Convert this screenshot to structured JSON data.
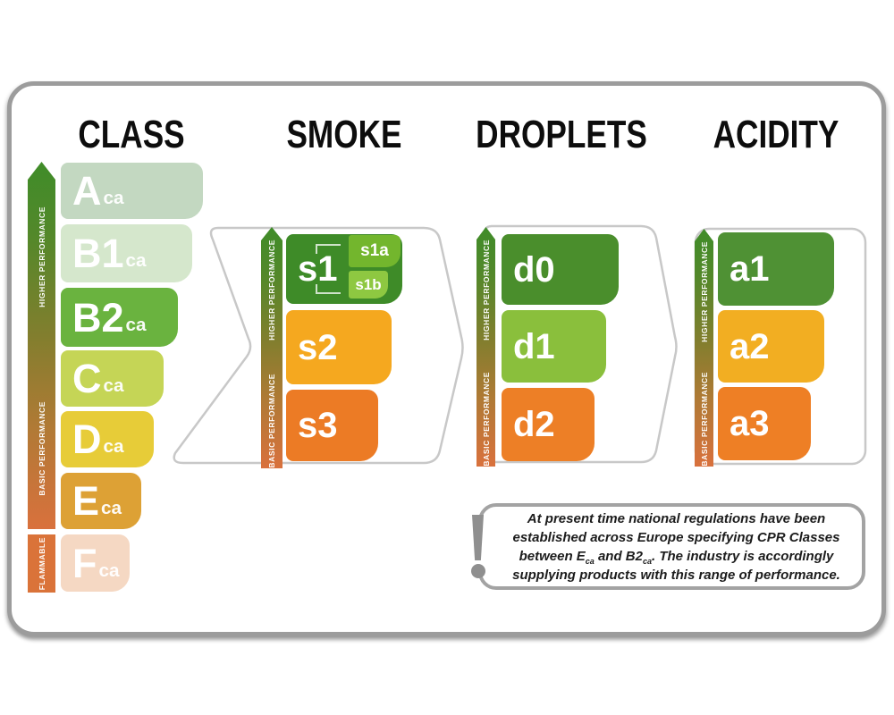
{
  "columns": {
    "class": {
      "title": "CLASS",
      "scale_labels": {
        "higher": "HIGHER PERFORMANCE",
        "basic": "BASIC PERFORMANCE",
        "flammable": "FLAMMABLE"
      },
      "bars": [
        {
          "label": "A",
          "subscript": "ca",
          "color": "#c3d8c1"
        },
        {
          "label": "B1",
          "subscript": "ca",
          "color": "#d5e7cc"
        },
        {
          "label": "B2",
          "subscript": "ca",
          "color": "#6ab33f"
        },
        {
          "label": "C",
          "subscript": "ca",
          "color": "#c5d556"
        },
        {
          "label": "D",
          "subscript": "ca",
          "color": "#e7cc38"
        },
        {
          "label": "E",
          "subscript": "ca",
          "color": "#dda135"
        },
        {
          "label": "F",
          "subscript": "ca",
          "color": "#f5d8c3"
        }
      ]
    },
    "smoke": {
      "title": "SMOKE",
      "scale_labels": {
        "higher": "HIGHER PERFORMANCE",
        "basic": "BASIC PERFORMANCE"
      },
      "bars": [
        {
          "label": "s1",
          "color": "#3e8b28",
          "badges": [
            {
              "label": "s1a",
              "color": "#73b62d"
            },
            {
              "label": "s1b",
              "color": "#8ec841"
            }
          ]
        },
        {
          "label": "s2",
          "color": "#f5a81f"
        },
        {
          "label": "s3",
          "color": "#ec7b25"
        }
      ]
    },
    "droplets": {
      "title": "DROPLETS",
      "scale_labels": {
        "higher": "HIGHER PERFORMANCE",
        "basic": "BASIC PERFORMANCE"
      },
      "bars": [
        {
          "label": "d0",
          "color": "#4a8e2c"
        },
        {
          "label": "d1",
          "color": "#8abf3c"
        },
        {
          "label": "d2",
          "color": "#ed7f26"
        }
      ]
    },
    "acidity": {
      "title": "ACIDITY",
      "scale_labels": {
        "higher": "HIGHER PERFORMANCE",
        "basic": "BASIC PERFORMANCE"
      },
      "bars": [
        {
          "label": "a1",
          "color": "#4f9134"
        },
        {
          "label": "a2",
          "color": "#f2ae22"
        },
        {
          "label": "a3",
          "color": "#ee7f25"
        }
      ]
    }
  },
  "note": {
    "segments": [
      {
        "text": "At present time national regulations have been established across Europe specifying CPR Classes between E"
      },
      {
        "sub": "ca"
      },
      {
        "text": " and B2"
      },
      {
        "sub": "ca"
      },
      {
        "text": ". The industry is accordingly supplying products with this range of performance."
      }
    ]
  },
  "palette": {
    "card_border": "#9c9c9c",
    "flow_outline": "#c8c8c8",
    "scale_gradient_top": "#3f8c29",
    "scale_gradient_bottom": "#d9713d",
    "flammable_fill": "#da7339",
    "exclamation_gray": "#8f8f8f",
    "header_text": "#0d0d0d",
    "bar_text": "#ffffff",
    "note_text": "#1c1c1c"
  }
}
